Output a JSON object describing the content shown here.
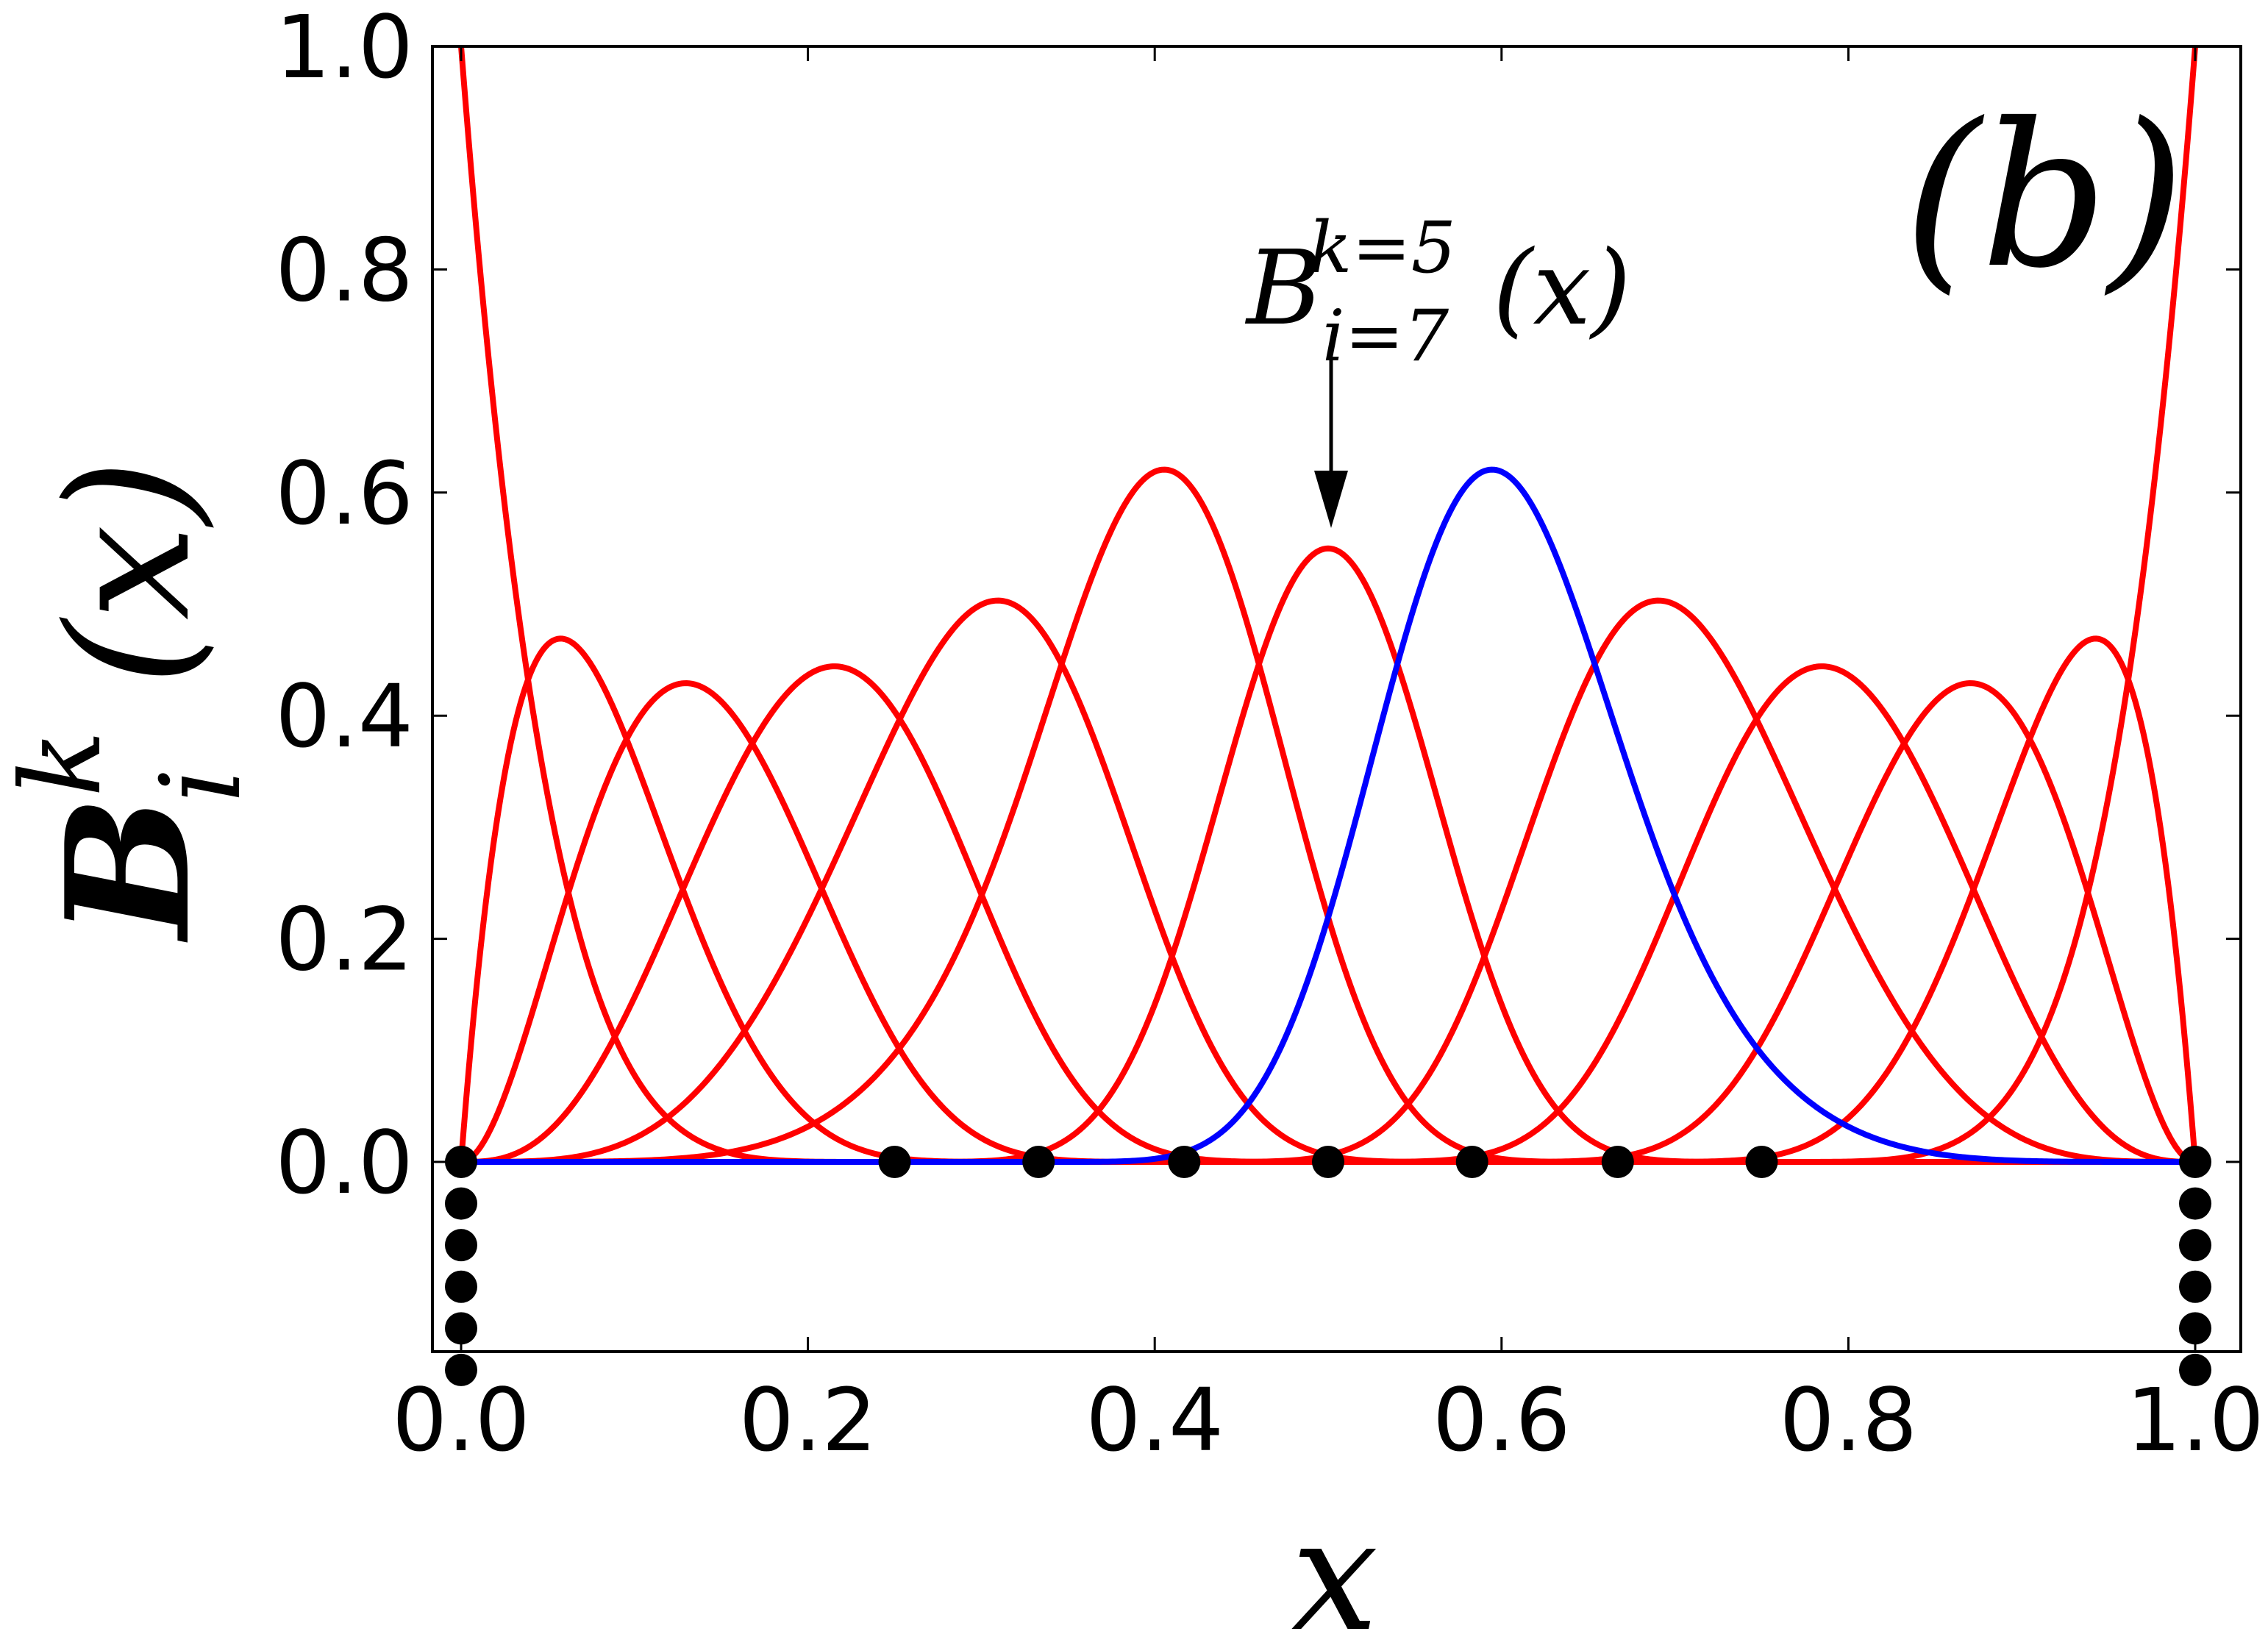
{
  "chart_data": {
    "type": "line",
    "panel_label": "(b)",
    "xlabel": "x",
    "ylabel": {
      "base": "B",
      "sub": "i",
      "sup": "k",
      "arg": "(x)"
    },
    "annotation": {
      "base": "B",
      "sub": "i=7",
      "sup": "k=5",
      "arg": "(x)",
      "points_to_x": 0.5,
      "points_to_y": 0.55
    },
    "xlim": [
      0.0,
      1.0
    ],
    "ylim": [
      -0.17,
      1.0
    ],
    "xticks": [
      0.0,
      0.2,
      0.4,
      0.6,
      0.8,
      1.0
    ],
    "xtick_labels": [
      "0.0",
      "0.2",
      "0.4",
      "0.6",
      "0.8",
      "1.0"
    ],
    "yticks": [
      0.0,
      0.2,
      0.4,
      0.6,
      0.8,
      1.0
    ],
    "ytick_labels": [
      "0.0",
      "0.2",
      "0.4",
      "0.6",
      "0.8",
      "1.0"
    ],
    "grid": false,
    "spline_order_k": 5,
    "highlighted_index": 7,
    "knots": [
      0,
      0,
      0,
      0,
      0,
      0,
      0.25,
      0.333,
      0.417,
      0.5,
      0.583,
      0.667,
      0.75,
      1,
      1,
      1,
      1,
      1,
      1
    ],
    "series_color": "#ff0000",
    "highlight_color": "#0000ff",
    "knot_marker_color": "#000000"
  }
}
